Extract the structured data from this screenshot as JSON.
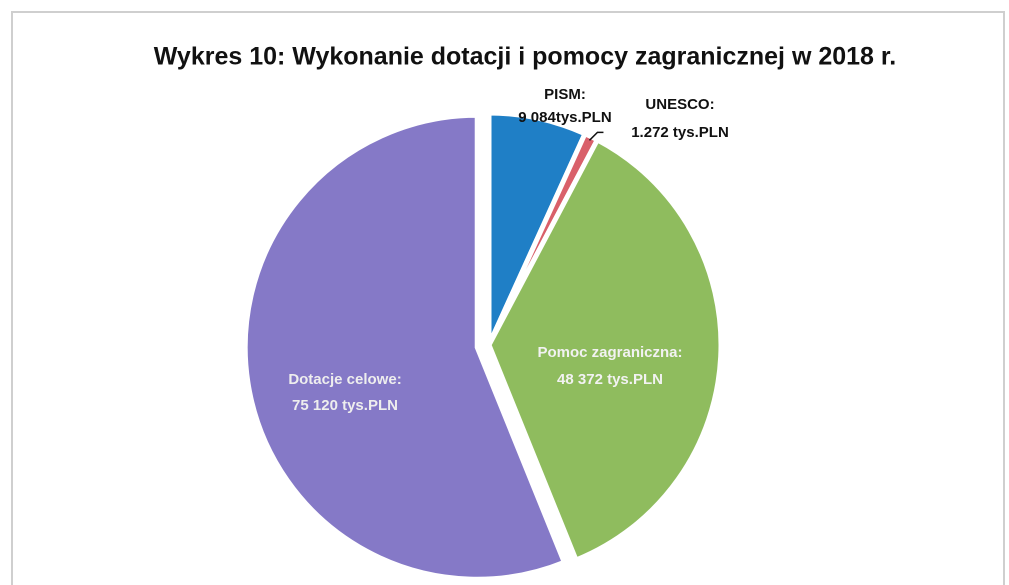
{
  "chart_data": {
    "type": "pie",
    "title": "Wykres 10: Wykonanie dotacji i pomocy zagranicznej w 2018 r.",
    "categories": [
      "PISM:",
      "UNESCO:",
      "Pomoc zagraniczna:",
      "Dotacje celowe:"
    ],
    "values": [
      9084,
      1272,
      48372,
      75120
    ],
    "value_labels": [
      "9 084tys.PLN",
      "1.272 tys.PLN",
      "48 372 tys.PLN",
      "75 120 tys.PLN"
    ],
    "colors": [
      "#1f7fc6",
      "#d9606a",
      "#8fbc5e",
      "#8579c7"
    ]
  }
}
